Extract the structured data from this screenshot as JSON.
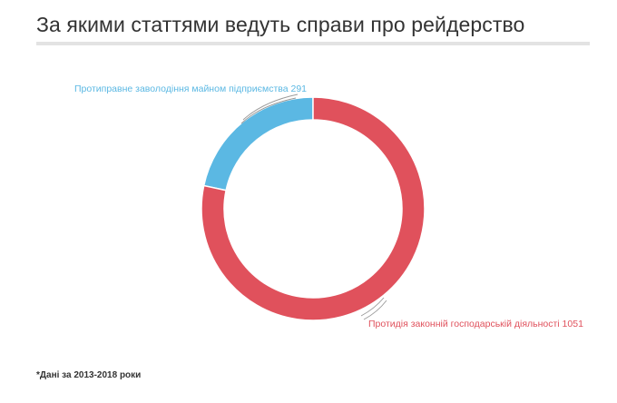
{
  "title": "За якими статтями ведуть справи про рейдерство",
  "footnote": "*Дані за 2013-2018 роки",
  "chart_data": {
    "type": "pie",
    "variant": "donut",
    "title": "За якими статтями ведуть справи про рейдерство",
    "categories": [
      "Протиправне заволодіння майном підприємства",
      "Протидія законній господарській діяльності"
    ],
    "values": [
      291,
      1051
    ],
    "colors": [
      "#5bb8e3",
      "#e0515c"
    ],
    "labels": [
      "Протиправне заволодіння майном підприємства 291",
      "Протидія законній господарській діяльності 1051"
    ]
  }
}
